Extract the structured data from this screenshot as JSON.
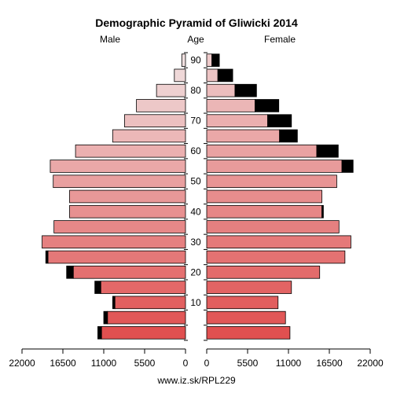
{
  "chart_data": {
    "type": "bar",
    "title": "Demographic Pyramid of Gliwicki 2014",
    "male_label": "Male",
    "female_label": "Female",
    "age_label": "Age",
    "source": "www.iz.sk/RPL229",
    "axis_max": 22000,
    "x_tick_values": [
      22000,
      16500,
      11000,
      5500,
      0
    ],
    "x_tick_labels": [
      "22000",
      "16500",
      "11000",
      "5500",
      "0"
    ],
    "x_tick_values_right": [
      0,
      5500,
      11000,
      16500,
      22000
    ],
    "x_tick_labels_right": [
      "0",
      "5500",
      "11000",
      "16500",
      "22000"
    ],
    "age_tick_labels": [
      "10",
      "20",
      "30",
      "40",
      "50",
      "60",
      "70",
      "80",
      "90"
    ],
    "age_groups": [
      "0-4",
      "5-9",
      "10-14",
      "15-19",
      "20-24",
      "25-29",
      "30-34",
      "35-39",
      "40-44",
      "45-49",
      "50-54",
      "55-59",
      "60-64",
      "65-69",
      "70-74",
      "75-79",
      "80-84",
      "85-89",
      "90+"
    ],
    "male_main": [
      11300,
      10500,
      9500,
      11400,
      15100,
      18500,
      19300,
      17700,
      15600,
      15600,
      17800,
      18200,
      14800,
      9800,
      8200,
      6600,
      3900,
      1500,
      500
    ],
    "male_excess": [
      500,
      500,
      300,
      800,
      900,
      300,
      0,
      0,
      0,
      0,
      0,
      0,
      0,
      0,
      0,
      0,
      0,
      0,
      0
    ],
    "female_main": [
      11200,
      10600,
      9600,
      11400,
      15200,
      18600,
      19400,
      17800,
      15500,
      15500,
      17500,
      18200,
      14800,
      9800,
      8200,
      6500,
      3800,
      1500,
      700
    ],
    "female_excess": [
      0,
      0,
      0,
      0,
      0,
      0,
      0,
      0,
      200,
      0,
      0,
      1500,
      2900,
      2400,
      3200,
      3200,
      2900,
      2000,
      1000
    ],
    "colors": {
      "female_excess": "#000000",
      "male_excess": "#000000",
      "outline": "#000000",
      "young_fill": "#e05050",
      "old_fill": "#f0e0e0"
    }
  }
}
